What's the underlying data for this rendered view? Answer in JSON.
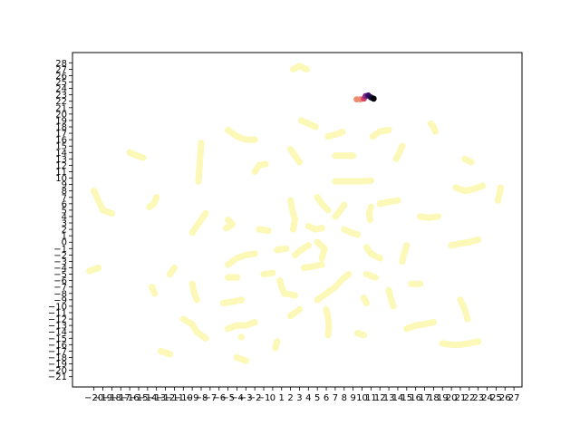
{
  "chart_data": {
    "type": "scatter",
    "title": "",
    "xlabel": "",
    "ylabel": "",
    "xlim": [
      -22.4,
      27.9
    ],
    "ylim": [
      -22.6,
      29.6
    ],
    "x_ticks": [
      -20,
      -19,
      -18,
      -17,
      -16,
      -15,
      -14,
      -13,
      -12,
      -11,
      -10,
      -9,
      -8,
      -7,
      -6,
      -5,
      -4,
      -3,
      -2,
      -1,
      0,
      1,
      2,
      3,
      4,
      5,
      6,
      7,
      8,
      9,
      10,
      11,
      12,
      13,
      14,
      15,
      16,
      17,
      18,
      19,
      20,
      21,
      22,
      23,
      24,
      25,
      26,
      27
    ],
    "y_ticks": [
      -21,
      -20,
      -19,
      -18,
      -17,
      -16,
      -15,
      -14,
      -13,
      -12,
      -11,
      -10,
      -9,
      -8,
      -7,
      -6,
      -5,
      -4,
      -3,
      -2,
      -1,
      0,
      1,
      2,
      3,
      4,
      5,
      6,
      7,
      8,
      9,
      10,
      11,
      12,
      13,
      14,
      15,
      16,
      17,
      18,
      19,
      20,
      21,
      22,
      23,
      24,
      25,
      26,
      27,
      28
    ],
    "x_tick_labels": [
      "−20",
      "−19",
      "−18",
      "−17",
      "−16",
      "−15",
      "−14",
      "−13",
      "−12",
      "−11",
      "−10",
      "−9",
      "−8",
      "−7",
      "−6",
      "−5",
      "−4",
      "−3",
      "−2",
      "−1",
      "0",
      "1",
      "2",
      "3",
      "4",
      "5",
      "6",
      "7",
      "8",
      "9",
      "10",
      "11",
      "12",
      "13",
      "14",
      "15",
      "16",
      "17",
      "18",
      "19",
      "20",
      "21",
      "22",
      "23",
      "24",
      "25",
      "26",
      "27"
    ],
    "y_tick_labels": [
      "−21",
      "−20",
      "−19",
      "−18",
      "−17",
      "−16",
      "−15",
      "−14",
      "−13",
      "−12",
      "−11",
      "−10",
      "−9",
      "−8",
      "−7",
      "−6",
      "−5",
      "−4",
      "−3",
      "−2",
      "−1",
      "0",
      "1",
      "2",
      "3",
      "4",
      "5",
      "6",
      "7",
      "8",
      "9",
      "10",
      "11",
      "12",
      "13",
      "14",
      "15",
      "16",
      "17",
      "18",
      "19",
      "20",
      "21",
      "22",
      "23",
      "24",
      "25",
      "26",
      "27",
      "28"
    ],
    "grid": false,
    "colors": {
      "background_trails": "#fcf8b8",
      "highlight_light": "#f08a6e",
      "highlight_mid": "#d8446c",
      "highlight_dark": "#3b0f70",
      "highlight_end": "#000004"
    },
    "series": [
      {
        "color": "#fcf8b8",
        "points": [
          [
            2.3,
            27
          ],
          [
            3.0,
            27.5
          ],
          [
            3.8,
            27
          ]
        ]
      },
      {
        "color": "#fcf8b8",
        "points": [
          [
            3.2,
            19
          ],
          [
            4.0,
            18.5
          ],
          [
            4.8,
            18
          ]
        ]
      },
      {
        "color": "#fcf8b8",
        "points": [
          [
            6.2,
            16.5
          ],
          [
            7.0,
            16.8
          ],
          [
            7.8,
            17.2
          ]
        ]
      },
      {
        "color": "#fcf8b8",
        "points": [
          [
            11.2,
            16.5
          ],
          [
            12.0,
            17.3
          ],
          [
            13.0,
            17.5
          ]
        ]
      },
      {
        "color": "#fcf8b8",
        "points": [
          [
            17.7,
            18.5
          ],
          [
            18.0,
            18.0
          ],
          [
            18.2,
            17.3
          ]
        ]
      },
      {
        "color": "#fcf8b8",
        "points": [
          [
            -5.0,
            17.5
          ],
          [
            -4.0,
            16.5
          ],
          [
            -3.0,
            16.0
          ],
          [
            -2.0,
            16.0
          ]
        ]
      },
      {
        "color": "#fcf8b8",
        "points": [
          [
            -16.0,
            14.0
          ],
          [
            -15.2,
            13.5
          ],
          [
            -14.5,
            13.2
          ]
        ]
      },
      {
        "color": "#fcf8b8",
        "points": [
          [
            -8.0,
            15.5
          ],
          [
            -8.1,
            13.5
          ],
          [
            -8.2,
            11.5
          ],
          [
            -8.3,
            9.5
          ]
        ]
      },
      {
        "color": "#fcf8b8",
        "points": [
          [
            -2.0,
            11.0
          ],
          [
            -1.5,
            12.0
          ],
          [
            -0.8,
            12.2
          ]
        ]
      },
      {
        "color": "#fcf8b8",
        "points": [
          [
            2.0,
            14.5
          ],
          [
            2.5,
            13.5
          ],
          [
            3.0,
            12.5
          ]
        ]
      },
      {
        "color": "#fcf8b8",
        "points": [
          [
            7.0,
            13.5
          ],
          [
            8.0,
            13.5
          ],
          [
            9.0,
            13.5
          ]
        ]
      },
      {
        "color": "#fcf8b8",
        "points": [
          [
            14.5,
            15.0
          ],
          [
            14.2,
            14.0
          ],
          [
            13.8,
            13.0
          ]
        ]
      },
      {
        "color": "#fcf8b8",
        "points": [
          [
            21.5,
            13.0
          ],
          [
            22.2,
            12.5
          ]
        ]
      },
      {
        "color": "#fcf8b8",
        "points": [
          [
            7.0,
            9.5
          ],
          [
            8.5,
            9.5
          ],
          [
            10.0,
            9.5
          ],
          [
            11.0,
            9.6
          ]
        ]
      },
      {
        "color": "#fcf8b8",
        "points": [
          [
            20.5,
            8.5
          ],
          [
            21.5,
            8.0
          ],
          [
            22.5,
            8.3
          ],
          [
            23.5,
            8.8
          ]
        ]
      },
      {
        "color": "#fcf8b8",
        "points": [
          [
            25.5,
            8.5
          ],
          [
            25.4,
            7.5
          ],
          [
            25.2,
            6.5
          ]
        ]
      },
      {
        "color": "#fcf8b8",
        "points": [
          [
            -20.0,
            8.0
          ],
          [
            -19.5,
            6.5
          ],
          [
            -19.0,
            5.0
          ],
          [
            -18.0,
            4.5
          ]
        ]
      },
      {
        "color": "#fcf8b8",
        "points": [
          [
            -13.0,
            7.0
          ],
          [
            -13.3,
            6.0
          ],
          [
            -13.8,
            5.5
          ]
        ]
      },
      {
        "color": "#fcf8b8",
        "points": [
          [
            -7.5,
            4.5
          ],
          [
            -8.0,
            3.5
          ],
          [
            -8.5,
            2.5
          ],
          [
            -9.0,
            1.5
          ]
        ]
      },
      {
        "color": "#fcf8b8",
        "points": [
          [
            -5.0,
            3.5
          ],
          [
            -4.5,
            2.8
          ],
          [
            -5.2,
            2.2
          ]
        ]
      },
      {
        "color": "#fcf8b8",
        "points": [
          [
            -1.5,
            2.0
          ],
          [
            -0.5,
            1.8
          ]
        ]
      },
      {
        "color": "#fcf8b8",
        "points": [
          [
            2.0,
            6.5
          ],
          [
            2.2,
            5.0
          ],
          [
            2.5,
            3.5
          ],
          [
            2.3,
            2.0
          ]
        ]
      },
      {
        "color": "#fcf8b8",
        "points": [
          [
            5.0,
            7.0
          ],
          [
            5.5,
            6.0
          ],
          [
            6.2,
            5.0
          ]
        ]
      },
      {
        "color": "#fcf8b8",
        "points": [
          [
            4.0,
            2.5
          ],
          [
            4.8,
            2.0
          ],
          [
            5.5,
            2.2
          ]
        ]
      },
      {
        "color": "#fcf8b8",
        "points": [
          [
            7.0,
            4.0
          ],
          [
            7.5,
            4.8
          ],
          [
            8.0,
            5.8
          ]
        ]
      },
      {
        "color": "#fcf8b8",
        "points": [
          [
            11.0,
            5.5
          ],
          [
            10.8,
            4.5
          ],
          [
            10.9,
            3.5
          ]
        ]
      },
      {
        "color": "#fcf8b8",
        "points": [
          [
            12.0,
            6.0
          ],
          [
            13.0,
            6.3
          ],
          [
            14.0,
            6.5
          ]
        ]
      },
      {
        "color": "#fcf8b8",
        "points": [
          [
            16.5,
            4.0
          ],
          [
            17.5,
            3.8
          ],
          [
            18.5,
            4.0
          ]
        ]
      },
      {
        "color": "#fcf8b8",
        "points": [
          [
            8.0,
            2.0
          ],
          [
            8.8,
            1.5
          ],
          [
            9.5,
            1.2
          ]
        ]
      },
      {
        "color": "#fcf8b8",
        "points": [
          [
            20.0,
            -0.5
          ],
          [
            21.0,
            -0.2
          ],
          [
            22.0,
            0.0
          ],
          [
            23.0,
            0.4
          ]
        ]
      },
      {
        "color": "#fcf8b8",
        "points": [
          [
            14.5,
            -3.0
          ],
          [
            14.7,
            -1.8
          ],
          [
            15.0,
            -0.5
          ]
        ]
      },
      {
        "color": "#fcf8b8",
        "points": [
          [
            -5.0,
            -3.5
          ],
          [
            -4.0,
            -2.5
          ],
          [
            -3.0,
            -2.0
          ],
          [
            -2.0,
            -1.8
          ]
        ]
      },
      {
        "color": "#fcf8b8",
        "points": [
          [
            0.5,
            -1.2
          ],
          [
            1.5,
            -1.0
          ]
        ]
      },
      {
        "color": "#fcf8b8",
        "points": [
          [
            2.5,
            -2.0
          ],
          [
            3.2,
            -1.2
          ],
          [
            4.0,
            -0.5
          ]
        ]
      },
      {
        "color": "#fcf8b8",
        "points": [
          [
            5.0,
            0.0
          ],
          [
            5.8,
            -1.0
          ],
          [
            5.5,
            -2.5
          ]
        ]
      },
      {
        "color": "#fcf8b8",
        "points": [
          [
            3.5,
            -4.0
          ],
          [
            4.5,
            -3.8
          ],
          [
            5.5,
            -3.5
          ]
        ]
      },
      {
        "color": "#fcf8b8",
        "points": [
          [
            10.5,
            -0.8
          ],
          [
            11.0,
            -1.8
          ],
          [
            12.0,
            -2.5
          ]
        ]
      },
      {
        "color": "#fcf8b8",
        "points": [
          [
            -20.5,
            -4.5
          ],
          [
            -19.5,
            -4.0
          ]
        ]
      },
      {
        "color": "#fcf8b8",
        "points": [
          [
            -11.5,
            -5.0
          ],
          [
            -11.0,
            -4.0
          ]
        ]
      },
      {
        "color": "#fcf8b8",
        "points": [
          [
            -13.5,
            -7.0
          ],
          [
            -13.2,
            -8.0
          ]
        ]
      },
      {
        "color": "#fcf8b8",
        "points": [
          [
            -9.0,
            -6.5
          ],
          [
            -8.8,
            -7.8
          ],
          [
            -8.5,
            -9.0
          ]
        ]
      },
      {
        "color": "#fcf8b8",
        "points": [
          [
            -5.0,
            -5.5
          ],
          [
            -4.0,
            -5.5
          ]
        ]
      },
      {
        "color": "#fcf8b8",
        "points": [
          [
            -1.0,
            -5.0
          ],
          [
            0.0,
            -4.8
          ]
        ]
      },
      {
        "color": "#fcf8b8",
        "points": [
          [
            0.8,
            -6.0
          ],
          [
            1.0,
            -7.0
          ],
          [
            1.3,
            -8.0
          ],
          [
            2.5,
            -8.3
          ]
        ]
      },
      {
        "color": "#fcf8b8",
        "points": [
          [
            5.0,
            -9.0
          ],
          [
            6.0,
            -8.0
          ],
          [
            7.0,
            -7.0
          ],
          [
            7.8,
            -5.8
          ],
          [
            8.5,
            -5.0
          ]
        ]
      },
      {
        "color": "#fcf8b8",
        "points": [
          [
            10.5,
            -5.0
          ],
          [
            11.5,
            -5.5
          ]
        ]
      },
      {
        "color": "#fcf8b8",
        "points": [
          [
            13.0,
            -7.5
          ],
          [
            13.2,
            -8.7
          ],
          [
            13.5,
            -10.0
          ]
        ]
      },
      {
        "color": "#fcf8b8",
        "points": [
          [
            15.5,
            -6.5
          ],
          [
            16.5,
            -6.5
          ]
        ]
      },
      {
        "color": "#fcf8b8",
        "points": [
          [
            10.2,
            -8.7
          ],
          [
            10.5,
            -9.5
          ]
        ]
      },
      {
        "color": "#fcf8b8",
        "points": [
          [
            -5.5,
            -9.5
          ],
          [
            -4.5,
            -9.3
          ],
          [
            -3.5,
            -9.0
          ]
        ]
      },
      {
        "color": "#fcf8b8",
        "points": [
          [
            2.0,
            -11.5
          ],
          [
            3.0,
            -10.5
          ]
        ]
      },
      {
        "color": "#fcf8b8",
        "points": [
          [
            6.0,
            -10.5
          ],
          [
            6.2,
            -11.8
          ],
          [
            6.3,
            -13.0
          ],
          [
            6.2,
            -14.5
          ]
        ]
      },
      {
        "color": "#fcf8b8",
        "points": [
          [
            -10.0,
            -12.0
          ],
          [
            -9.0,
            -12.8
          ],
          [
            -8.5,
            -14.0
          ],
          [
            -7.5,
            -15.0
          ]
        ]
      },
      {
        "color": "#fcf8b8",
        "points": [
          [
            -5.0,
            -13.5
          ],
          [
            -4.0,
            -13.0
          ],
          [
            -3.0,
            -13.0
          ],
          [
            -2.0,
            -12.5
          ]
        ]
      },
      {
        "color": "#fcf8b8",
        "points": [
          [
            -3.5,
            -14.8
          ]
        ]
      },
      {
        "color": "#fcf8b8",
        "points": [
          [
            0.5,
            -15.5
          ],
          [
            0.3,
            -16.5
          ]
        ]
      },
      {
        "color": "#fcf8b8",
        "points": [
          [
            9.5,
            -14.2
          ],
          [
            10.2,
            -14.5
          ]
        ]
      },
      {
        "color": "#fcf8b8",
        "points": [
          [
            15.0,
            -13.5
          ],
          [
            16.0,
            -13.0
          ],
          [
            17.0,
            -12.8
          ],
          [
            18.0,
            -12.5
          ]
        ]
      },
      {
        "color": "#fcf8b8",
        "points": [
          [
            21.0,
            -9.0
          ],
          [
            21.5,
            -10.5
          ],
          [
            21.8,
            -12.0
          ]
        ]
      },
      {
        "color": "#fcf8b8",
        "points": [
          [
            19.0,
            -15.8
          ],
          [
            20.0,
            -16.0
          ],
          [
            21.0,
            -16.0
          ],
          [
            22.0,
            -15.8
          ],
          [
            23.0,
            -15.5
          ]
        ]
      },
      {
        "color": "#fcf8b8",
        "points": [
          [
            -12.5,
            -17.0
          ],
          [
            -11.5,
            -17.5
          ]
        ]
      },
      {
        "color": "#fcf8b8",
        "points": [
          [
            -4.0,
            -18.0
          ],
          [
            -3.0,
            -18.5
          ]
        ]
      }
    ],
    "highlight_points": [
      {
        "x": 9.4,
        "y": 22.3,
        "color": "#f08a6e"
      },
      {
        "x": 9.8,
        "y": 22.3,
        "color": "#f08a6e"
      },
      {
        "x": 10.2,
        "y": 22.4,
        "color": "#d8446c"
      },
      {
        "x": 10.4,
        "y": 22.8,
        "color": "#8c2981"
      },
      {
        "x": 10.7,
        "y": 22.9,
        "color": "#3b0f70"
      },
      {
        "x": 11.0,
        "y": 22.6,
        "color": "#1a1042"
      },
      {
        "x": 11.3,
        "y": 22.4,
        "color": "#000004"
      }
    ]
  }
}
